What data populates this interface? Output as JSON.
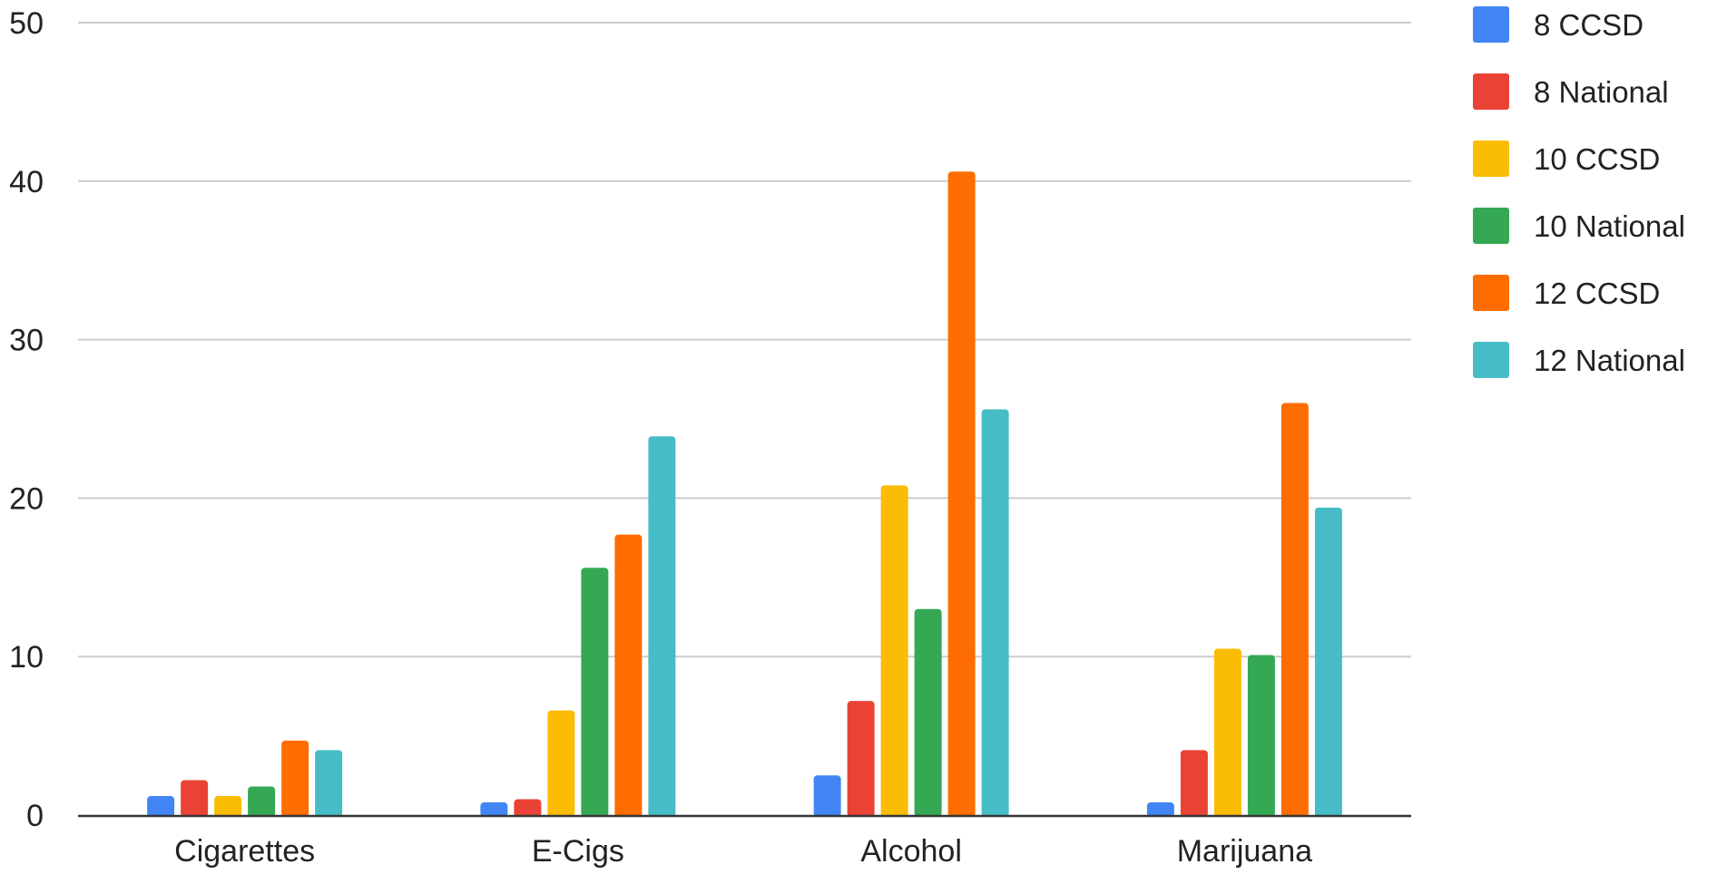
{
  "chart_data": {
    "type": "bar",
    "categories": [
      "Cigarettes",
      "E-Cigs",
      "Alcohol",
      "Marijuana"
    ],
    "ylim": [
      0,
      50
    ],
    "yticks": [
      0,
      10,
      20,
      30,
      40,
      50
    ],
    "grid": true,
    "legend_position": "right",
    "series": [
      {
        "name": "8 CCSD",
        "color": "#4285F4",
        "values": [
          1.2,
          0.8,
          2.5,
          0.8
        ]
      },
      {
        "name": "8 National",
        "color": "#EA4335",
        "values": [
          2.2,
          1.0,
          7.2,
          4.1
        ]
      },
      {
        "name": "10 CCSD",
        "color": "#FBBC04",
        "values": [
          1.2,
          6.6,
          20.8,
          10.5
        ]
      },
      {
        "name": "10 National",
        "color": "#34A853",
        "values": [
          1.8,
          15.6,
          13.0,
          10.1
        ]
      },
      {
        "name": "12 CCSD",
        "color": "#FF6D01",
        "values": [
          4.7,
          17.7,
          40.6,
          26.0
        ]
      },
      {
        "name": "12 National",
        "color": "#46BDC6",
        "values": [
          4.1,
          23.9,
          25.6,
          19.4
        ]
      }
    ]
  }
}
